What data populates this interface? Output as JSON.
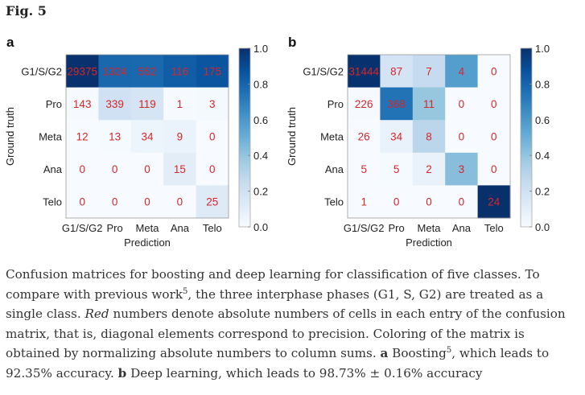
{
  "figure_title": "Fig. 5",
  "chart_data": [
    {
      "type": "heatmap",
      "panel": "a",
      "xlabel": "Prediction",
      "ylabel": "Ground truth",
      "categories": [
        "G1/S/G2",
        "Pro",
        "Meta",
        "Ana",
        "Telo"
      ],
      "values": [
        [
          29375,
          1324,
          552,
          116,
          175
        ],
        [
          143,
          339,
          119,
          1,
          3
        ],
        [
          12,
          13,
          34,
          9,
          0
        ],
        [
          0,
          0,
          0,
          15,
          0
        ],
        [
          0,
          0,
          0,
          0,
          25
        ]
      ],
      "colorbar_ticks": [
        "0.0",
        "0.2",
        "0.4",
        "0.6",
        "0.8",
        "1.0"
      ],
      "color_normalization": "column sums"
    },
    {
      "type": "heatmap",
      "panel": "b",
      "xlabel": "Prediction",
      "ylabel": "Ground truth",
      "categories": [
        "G1/S/G2",
        "Pro",
        "Meta",
        "Ana",
        "Telo"
      ],
      "values": [
        [
          31444,
          87,
          7,
          4,
          0
        ],
        [
          226,
          368,
          11,
          0,
          0
        ],
        [
          26,
          34,
          8,
          0,
          0
        ],
        [
          5,
          5,
          2,
          3,
          0
        ],
        [
          1,
          0,
          0,
          0,
          24
        ]
      ],
      "colorbar_ticks": [
        "0.0",
        "0.2",
        "0.4",
        "0.6",
        "0.8",
        "1.0"
      ],
      "color_normalization": "column sums"
    }
  ],
  "colors": {
    "number": "#d62728",
    "cmap": [
      "#f7fbff",
      "#deebf7",
      "#c6dbef",
      "#9ecae1",
      "#6baed6",
      "#4292c6",
      "#2171b5",
      "#08519c",
      "#08306b"
    ]
  },
  "caption": {
    "p1": "Confusion matrices for boosting and deep learning for classification of five classes. To compare with previous work",
    "ref1": "5",
    "p2": ", the three interphase phases (G1, S, G2) are treated as a single class. ",
    "red": "Red",
    "p3": " numbers denote absolute numbers of cells in each entry of the confusion matrix, that is, diagonal elements correspond to precision. Coloring of the matrix is obtained by normalizing absolute numbers to column sums. ",
    "a": "a",
    "p4": " Boosting",
    "ref2": "5",
    "p5": ", which leads to 92.35% accuracy. ",
    "b": "b",
    "p6": " Deep learning, which leads to 98.73% ± 0.16% accuracy"
  }
}
